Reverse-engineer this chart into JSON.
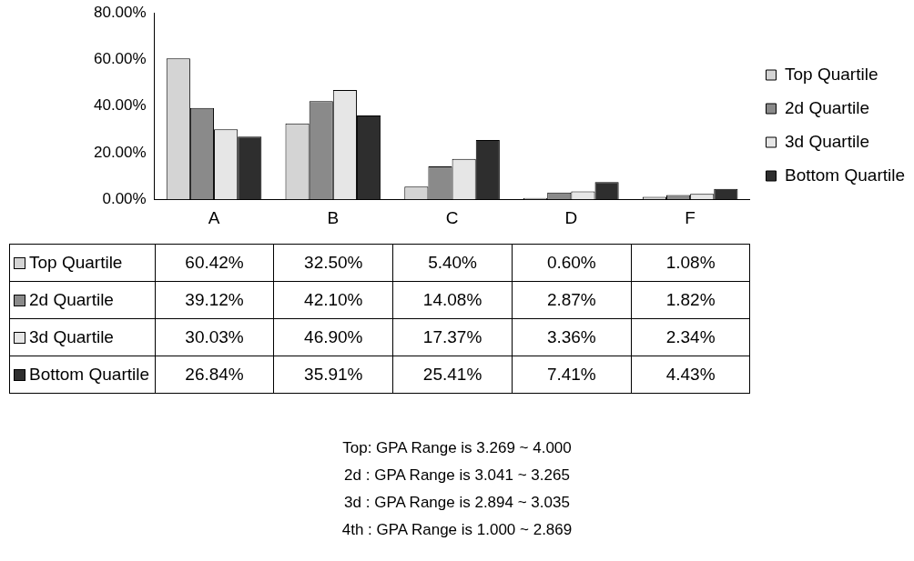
{
  "chart_data": {
    "type": "bar",
    "categories": [
      "A",
      "B",
      "C",
      "D",
      "F"
    ],
    "series": [
      {
        "name": "Top Quartile",
        "color": "#d4d4d4",
        "values": [
          60.42,
          32.5,
          5.4,
          0.6,
          1.08
        ],
        "value_labels": [
          "60.42%",
          "32.50%",
          "5.40%",
          "0.60%",
          "1.08%"
        ]
      },
      {
        "name": "2d Quartile",
        "color": "#8a8a8a",
        "values": [
          39.12,
          42.1,
          14.08,
          2.87,
          1.82
        ],
        "value_labels": [
          "39.12%",
          "42.10%",
          "14.08%",
          "2.87%",
          "1.82%"
        ]
      },
      {
        "name": "3d Quartile",
        "color": "#e6e6e6",
        "values": [
          30.03,
          46.9,
          17.37,
          3.36,
          2.34
        ],
        "value_labels": [
          "30.03%",
          "46.90%",
          "17.37%",
          "3.36%",
          "2.34%"
        ]
      },
      {
        "name": "Bottom Quartile",
        "color": "#2e2e2e",
        "values": [
          26.84,
          35.91,
          25.41,
          7.41,
          4.43
        ],
        "value_labels": [
          "26.84%",
          "35.91%",
          "25.41%",
          "7.41%",
          "4.43%"
        ]
      }
    ],
    "ylim": [
      0,
      80
    ],
    "yticks": [
      {
        "value": 0,
        "label": "0.00%"
      },
      {
        "value": 20,
        "label": "20.00%"
      },
      {
        "value": 40,
        "label": "40.00%"
      },
      {
        "value": 60,
        "label": "60.00%"
      },
      {
        "value": 80,
        "label": "80.00%"
      }
    ],
    "grid": false,
    "legend": "right",
    "annotations": [
      "Top: GPA Range is 3.269 ~ 4.000",
      "2d : GPA Range is 3.041 ~ 3.265",
      "3d : GPA Range is 2.894 ~ 3.035",
      "4th : GPA Range is 1.000 ~ 2.869"
    ]
  }
}
